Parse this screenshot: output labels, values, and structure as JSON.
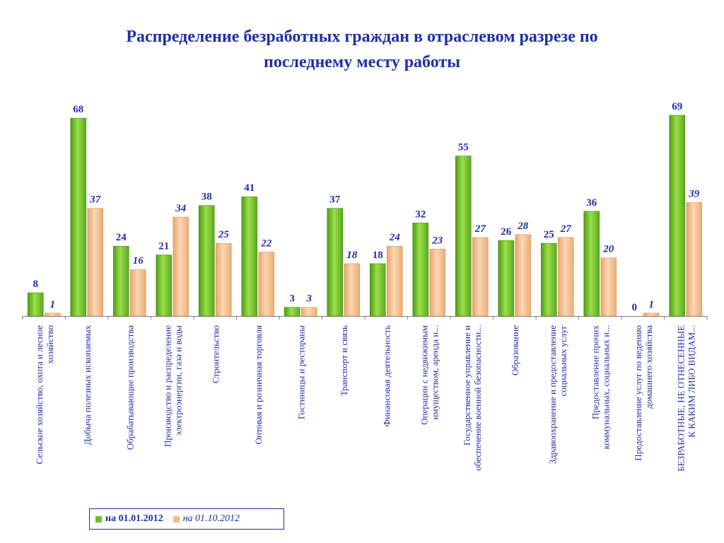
{
  "title": {
    "line1": "Распределение безработных граждан в отраслевом разрезе по",
    "line2": "последнему месту работы"
  },
  "legend": {
    "series1": "на 01.01.2012",
    "series2": "на 01.10.2012"
  },
  "colors": {
    "title": "#1f2fa8",
    "series1": "#6fbd2a",
    "series2": "#f2bc8c",
    "labels": "#1f2fa8"
  },
  "chart_data": {
    "type": "bar",
    "categories": [
      [
        "Сельское хозяйство, охота и лесное",
        "хозяйство"
      ],
      [
        "Добыча полезных ископаемых"
      ],
      [
        "Обрабатывающие производства"
      ],
      [
        "Производство и распределение",
        "электроэнергии, газа и воды"
      ],
      [
        "Строительство"
      ],
      [
        "Оптовая и розничная торговля"
      ],
      [
        "Гостиницы и рестораны"
      ],
      [
        "Транспорт и связь"
      ],
      [
        "Финансовая деятельность"
      ],
      [
        "Операции с недвижимым",
        "имуществом, аренда и..."
      ],
      [
        "Государственное управление и",
        "обеспечение военной безопасности..."
      ],
      [
        "Образование"
      ],
      [
        "Здравоохранение и предоставление",
        "социальных услуг"
      ],
      [
        "Предоставление прочих",
        "коммунальных, социальных и..."
      ],
      [
        "Предоставление услуг по ведению",
        "домашнего хозяйства"
      ],
      [
        "БЕЗРАБОТНЫЕ, НЕ ОТНЕСЕННЫЕ",
        "К КАКИМ ЛИБО ВИДАМ..."
      ]
    ],
    "series": [
      {
        "name": "на 01.01.2012",
        "values": [
          8,
          68,
          24,
          21,
          38,
          41,
          3,
          37,
          18,
          32,
          55,
          26,
          25,
          36,
          0,
          69
        ]
      },
      {
        "name": "на 01.10.2012",
        "values": [
          1,
          37,
          16,
          34,
          25,
          22,
          3,
          18,
          24,
          23,
          27,
          28,
          27,
          20,
          1,
          39
        ]
      }
    ],
    "ylim": [
      0,
      69
    ],
    "grid": false,
    "legend_position": "bottom-left",
    "data_labels": true
  }
}
